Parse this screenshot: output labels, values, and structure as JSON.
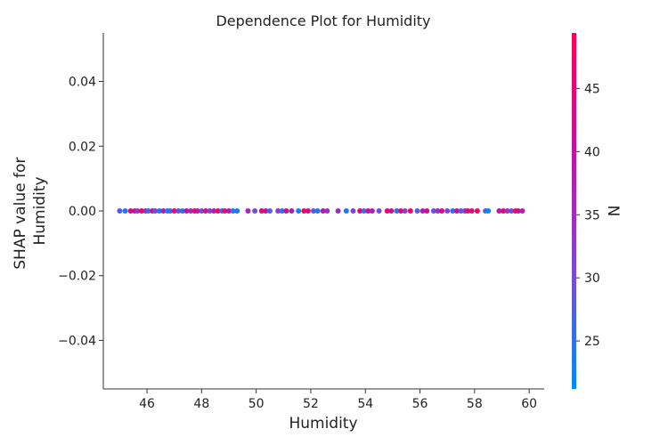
{
  "chart_data": {
    "type": "scatter",
    "title": "Dependence Plot for Humidity",
    "xlabel": "Humidity",
    "ylabel_lines": [
      "SHAP value for",
      "Humidity"
    ],
    "xlim": [
      44.4,
      60.55
    ],
    "ylim": [
      -0.055,
      0.055
    ],
    "x_ticks": [
      46,
      48,
      50,
      52,
      54,
      56,
      58,
      60
    ],
    "y_ticks": [
      -0.04,
      -0.02,
      0.0,
      0.02,
      0.04
    ],
    "y_tick_labels": [
      "−0.04",
      "−0.02",
      "0.00",
      "0.02",
      "0.04"
    ],
    "grid": false,
    "colorbar": {
      "label": "N",
      "range": [
        21.2,
        49.4
      ],
      "ticks": [
        25,
        30,
        35,
        40,
        45
      ],
      "colormap": [
        "#008afb",
        "#7d47d6",
        "#c4129f",
        "#ff0052"
      ]
    },
    "points": [
      {
        "x": 45.0,
        "y": 0.0,
        "c": 28
      },
      {
        "x": 45.2,
        "y": 0.0,
        "c": 23
      },
      {
        "x": 45.4,
        "y": 0.0,
        "c": 44
      },
      {
        "x": 45.55,
        "y": 0.0,
        "c": 40
      },
      {
        "x": 45.65,
        "y": 0.0,
        "c": 33
      },
      {
        "x": 45.8,
        "y": 0.0,
        "c": 46
      },
      {
        "x": 45.95,
        "y": 0.0,
        "c": 36
      },
      {
        "x": 46.05,
        "y": 0.0,
        "c": 26
      },
      {
        "x": 46.2,
        "y": 0.0,
        "c": 42
      },
      {
        "x": 46.3,
        "y": 0.0,
        "c": 31
      },
      {
        "x": 46.45,
        "y": 0.0,
        "c": 24
      },
      {
        "x": 46.6,
        "y": 0.0,
        "c": 38
      },
      {
        "x": 46.75,
        "y": 0.0,
        "c": 22
      },
      {
        "x": 46.85,
        "y": 0.0,
        "c": 27
      },
      {
        "x": 47.0,
        "y": 0.0,
        "c": 45
      },
      {
        "x": 47.15,
        "y": 0.0,
        "c": 30
      },
      {
        "x": 47.3,
        "y": 0.0,
        "c": 25
      },
      {
        "x": 47.45,
        "y": 0.0,
        "c": 41
      },
      {
        "x": 47.6,
        "y": 0.0,
        "c": 35
      },
      {
        "x": 47.75,
        "y": 0.0,
        "c": 47
      },
      {
        "x": 47.85,
        "y": 0.0,
        "c": 39
      },
      {
        "x": 48.0,
        "y": 0.0,
        "c": 29
      },
      {
        "x": 48.15,
        "y": 0.0,
        "c": 43
      },
      {
        "x": 48.3,
        "y": 0.0,
        "c": 32
      },
      {
        "x": 48.45,
        "y": 0.0,
        "c": 37
      },
      {
        "x": 48.6,
        "y": 0.0,
        "c": 46
      },
      {
        "x": 48.75,
        "y": 0.0,
        "c": 26
      },
      {
        "x": 48.85,
        "y": 0.0,
        "c": 44
      },
      {
        "x": 49.0,
        "y": 0.0,
        "c": 40
      },
      {
        "x": 49.15,
        "y": 0.0,
        "c": 23
      },
      {
        "x": 49.3,
        "y": 0.0,
        "c": 24
      },
      {
        "x": 49.7,
        "y": 0.0,
        "c": 36
      },
      {
        "x": 49.95,
        "y": 0.0,
        "c": 29
      },
      {
        "x": 50.2,
        "y": 0.0,
        "c": 45
      },
      {
        "x": 50.35,
        "y": 0.0,
        "c": 41
      },
      {
        "x": 50.5,
        "y": 0.0,
        "c": 27
      },
      {
        "x": 50.8,
        "y": 0.0,
        "c": 33
      },
      {
        "x": 50.95,
        "y": 0.0,
        "c": 25
      },
      {
        "x": 51.1,
        "y": 0.0,
        "c": 42
      },
      {
        "x": 51.3,
        "y": 0.0,
        "c": 38
      },
      {
        "x": 51.55,
        "y": 0.0,
        "c": 22
      },
      {
        "x": 51.75,
        "y": 0.0,
        "c": 47
      },
      {
        "x": 51.9,
        "y": 0.0,
        "c": 43
      },
      {
        "x": 52.1,
        "y": 0.0,
        "c": 28
      },
      {
        "x": 52.25,
        "y": 0.0,
        "c": 24
      },
      {
        "x": 52.45,
        "y": 0.0,
        "c": 39
      },
      {
        "x": 52.6,
        "y": 0.0,
        "c": 34
      },
      {
        "x": 53.0,
        "y": 0.0,
        "c": 36
      },
      {
        "x": 53.3,
        "y": 0.0,
        "c": 23
      },
      {
        "x": 53.55,
        "y": 0.0,
        "c": 31
      },
      {
        "x": 53.8,
        "y": 0.0,
        "c": 44
      },
      {
        "x": 53.95,
        "y": 0.0,
        "c": 26
      },
      {
        "x": 54.1,
        "y": 0.0,
        "c": 41
      },
      {
        "x": 54.25,
        "y": 0.0,
        "c": 37
      },
      {
        "x": 54.5,
        "y": 0.0,
        "c": 30
      },
      {
        "x": 54.8,
        "y": 0.0,
        "c": 46
      },
      {
        "x": 54.95,
        "y": 0.0,
        "c": 40
      },
      {
        "x": 55.15,
        "y": 0.0,
        "c": 25
      },
      {
        "x": 55.3,
        "y": 0.0,
        "c": 45
      },
      {
        "x": 55.45,
        "y": 0.0,
        "c": 32
      },
      {
        "x": 55.65,
        "y": 0.0,
        "c": 47
      },
      {
        "x": 55.9,
        "y": 0.0,
        "c": 27
      },
      {
        "x": 56.1,
        "y": 0.0,
        "c": 38
      },
      {
        "x": 56.25,
        "y": 0.0,
        "c": 42
      },
      {
        "x": 56.5,
        "y": 0.0,
        "c": 29
      },
      {
        "x": 56.65,
        "y": 0.0,
        "c": 35
      },
      {
        "x": 56.8,
        "y": 0.0,
        "c": 44
      },
      {
        "x": 57.0,
        "y": 0.0,
        "c": 31
      },
      {
        "x": 57.2,
        "y": 0.0,
        "c": 24
      },
      {
        "x": 57.35,
        "y": 0.0,
        "c": 40
      },
      {
        "x": 57.5,
        "y": 0.0,
        "c": 28
      },
      {
        "x": 57.65,
        "y": 0.0,
        "c": 33
      },
      {
        "x": 57.75,
        "y": 0.0,
        "c": 46
      },
      {
        "x": 57.9,
        "y": 0.0,
        "c": 43
      },
      {
        "x": 58.1,
        "y": 0.0,
        "c": 48
      },
      {
        "x": 58.4,
        "y": 0.0,
        "c": 26
      },
      {
        "x": 58.5,
        "y": 0.0,
        "c": 22
      },
      {
        "x": 58.9,
        "y": 0.0,
        "c": 39
      },
      {
        "x": 59.05,
        "y": 0.0,
        "c": 45
      },
      {
        "x": 59.2,
        "y": 0.0,
        "c": 34
      },
      {
        "x": 59.35,
        "y": 0.0,
        "c": 29
      },
      {
        "x": 59.5,
        "y": 0.0,
        "c": 47
      },
      {
        "x": 59.6,
        "y": 0.0,
        "c": 41
      },
      {
        "x": 59.75,
        "y": 0.0,
        "c": 37
      }
    ]
  }
}
